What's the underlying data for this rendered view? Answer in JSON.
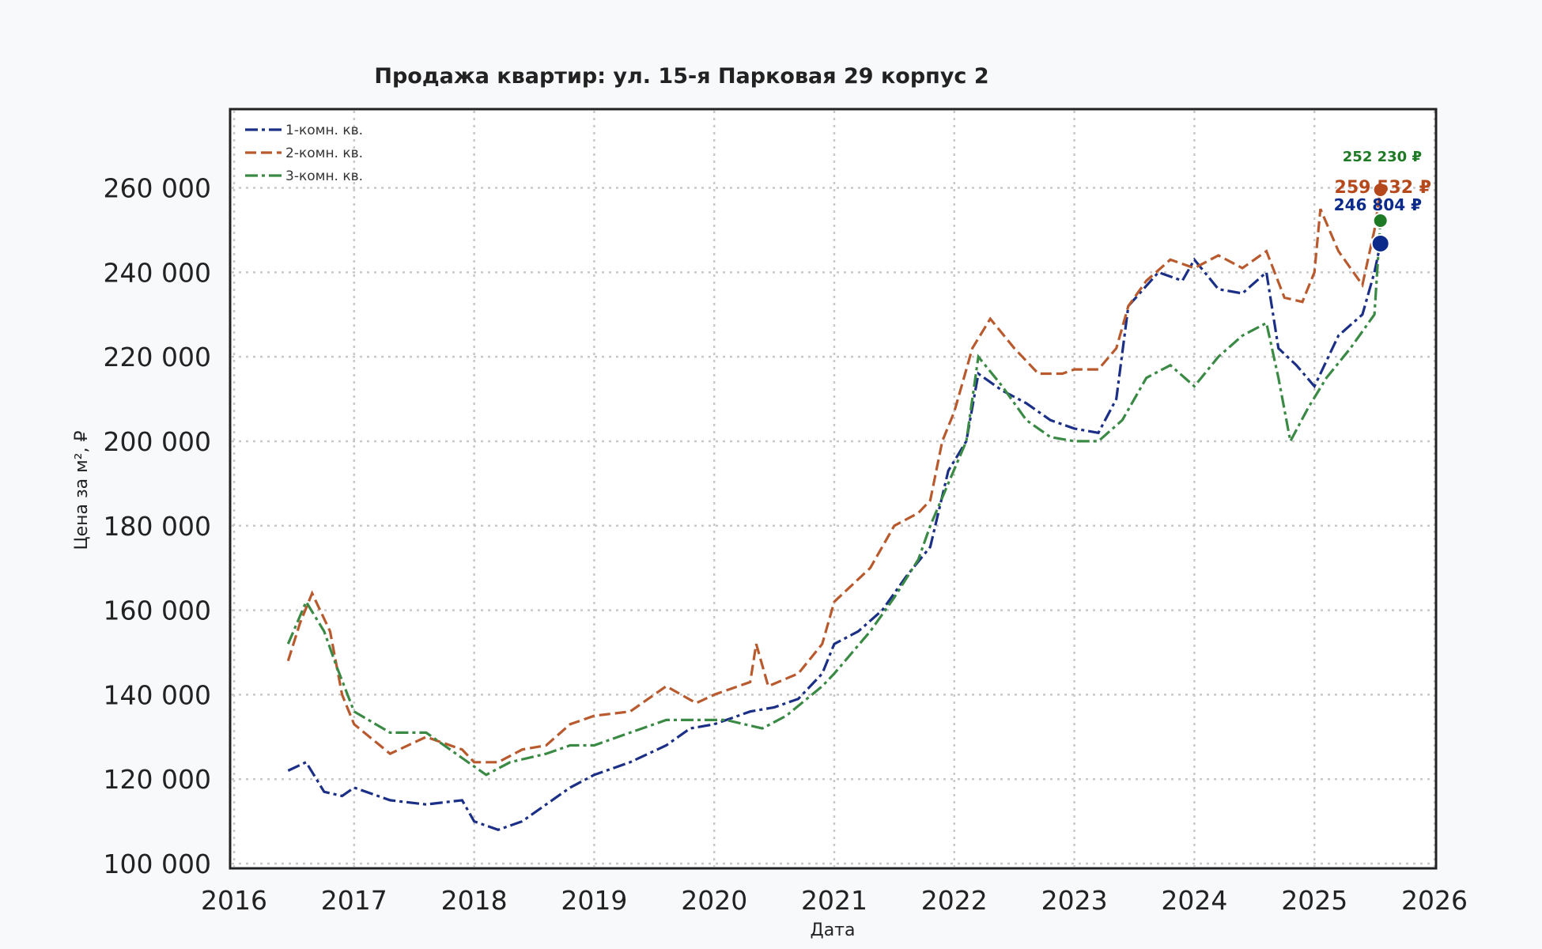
{
  "chart_data": {
    "type": "line",
    "title": "Продажа квартир: ул. 15-я Парковая 29 корпус 2",
    "xlabel": "Дата",
    "ylabel": "Цена за м², ₽",
    "xlim": [
      2016,
      2026
    ],
    "ylim": [
      100000,
      278000
    ],
    "xticks": [
      2016,
      2017,
      2018,
      2019,
      2020,
      2021,
      2022,
      2023,
      2024,
      2025,
      2026
    ],
    "yticks": [
      100000,
      120000,
      140000,
      160000,
      180000,
      200000,
      220000,
      240000,
      260000
    ],
    "ytick_labels": [
      "100 000",
      "120 000",
      "140 000",
      "160 000",
      "180 000",
      "200 000",
      "220 000",
      "240 000",
      "260 000"
    ],
    "grid": true,
    "legend_position": "top-left",
    "series": [
      {
        "name": "1-комн. кв.",
        "color": "#1b2f86",
        "dash": "dash-dot",
        "x": [
          2016.45,
          2016.6,
          2016.75,
          2016.9,
          2017.0,
          2017.3,
          2017.6,
          2017.9,
          2018.0,
          2018.2,
          2018.4,
          2018.6,
          2018.8,
          2019.0,
          2019.3,
          2019.6,
          2019.8,
          2020.0,
          2020.3,
          2020.5,
          2020.7,
          2020.9,
          2021.0,
          2021.2,
          2021.4,
          2021.6,
          2021.8,
          2021.95,
          2022.1,
          2022.2,
          2022.4,
          2022.6,
          2022.8,
          2023.0,
          2023.2,
          2023.35,
          2023.45,
          2023.7,
          2023.9,
          2024.0,
          2024.2,
          2024.4,
          2024.6,
          2024.7,
          2024.85,
          2025.0,
          2025.2,
          2025.4,
          2025.5,
          2025.55
        ],
        "y": [
          122000,
          124000,
          117000,
          116000,
          118000,
          115000,
          114000,
          115000,
          110000,
          108000,
          110000,
          114000,
          118000,
          121000,
          124000,
          128000,
          132000,
          133000,
          136000,
          137000,
          139000,
          145000,
          152000,
          155000,
          160000,
          168000,
          175000,
          193000,
          200000,
          216000,
          212000,
          209000,
          205000,
          203000,
          202000,
          210000,
          232000,
          240000,
          238000,
          243000,
          236000,
          235000,
          240000,
          222000,
          218000,
          213000,
          225000,
          230000,
          240000,
          246804
        ],
        "last_label": "246 804 ₽",
        "label_color": "#0c2a8a"
      },
      {
        "name": "2-комн. кв.",
        "color": "#b85a2e",
        "dash": "dashed",
        "x": [
          2016.45,
          2016.55,
          2016.65,
          2016.8,
          2016.9,
          2017.0,
          2017.3,
          2017.6,
          2017.9,
          2018.0,
          2018.2,
          2018.4,
          2018.6,
          2018.8,
          2019.0,
          2019.3,
          2019.6,
          2019.85,
          2020.0,
          2020.3,
          2020.35,
          2020.45,
          2020.7,
          2020.9,
          2021.0,
          2021.3,
          2021.5,
          2021.7,
          2021.8,
          2021.9,
          2022.0,
          2022.15,
          2022.3,
          2022.5,
          2022.7,
          2022.9,
          2023.0,
          2023.2,
          2023.35,
          2023.45,
          2023.6,
          2023.8,
          2024.0,
          2024.2,
          2024.4,
          2024.6,
          2024.75,
          2024.9,
          2025.0,
          2025.05,
          2025.2,
          2025.4,
          2025.5,
          2025.55
        ],
        "y": [
          148000,
          157000,
          164000,
          155000,
          140000,
          133000,
          126000,
          130000,
          127000,
          124000,
          124000,
          127000,
          128000,
          133000,
          135000,
          136000,
          142000,
          138000,
          140000,
          143000,
          152000,
          142000,
          145000,
          152000,
          162000,
          170000,
          180000,
          183000,
          186000,
          200000,
          207000,
          222000,
          229000,
          222000,
          216000,
          216000,
          217000,
          217000,
          222000,
          232000,
          238000,
          243000,
          241000,
          244000,
          241000,
          245000,
          234000,
          233000,
          240000,
          255000,
          245000,
          237000,
          250000,
          259532
        ],
        "last_label": "259 532 ₽",
        "label_color": "#b5491c"
      },
      {
        "name": "3-комн. кв.",
        "color": "#3a8a45",
        "dash": "dash-dot",
        "x": [
          2016.45,
          2016.6,
          2016.75,
          2016.85,
          2017.0,
          2017.3,
          2017.6,
          2017.9,
          2018.1,
          2018.3,
          2018.6,
          2018.8,
          2019.0,
          2019.3,
          2019.6,
          2019.9,
          2020.1,
          2020.4,
          2020.6,
          2020.9,
          2021.0,
          2021.3,
          2021.5,
          2021.7,
          2021.8,
          2021.95,
          2022.1,
          2022.2,
          2022.4,
          2022.6,
          2022.8,
          2023.0,
          2023.2,
          2023.4,
          2023.6,
          2023.8,
          2024.0,
          2024.2,
          2024.4,
          2024.6,
          2024.7,
          2024.8,
          2024.95,
          2025.1,
          2025.3,
          2025.5,
          2025.55
        ],
        "y": [
          152000,
          162000,
          155000,
          147000,
          136000,
          131000,
          131000,
          125000,
          121000,
          124000,
          126000,
          128000,
          128000,
          131000,
          134000,
          134000,
          134000,
          132000,
          135000,
          142000,
          145000,
          155000,
          163000,
          172000,
          180000,
          190000,
          200000,
          220000,
          213000,
          205000,
          201000,
          200000,
          200000,
          205000,
          215000,
          218000,
          213000,
          220000,
          225000,
          228000,
          215000,
          200000,
          208000,
          215000,
          222000,
          230000,
          252230
        ],
        "last_label": "252 230 ₽",
        "label_color": "#1e7a24"
      }
    ]
  }
}
